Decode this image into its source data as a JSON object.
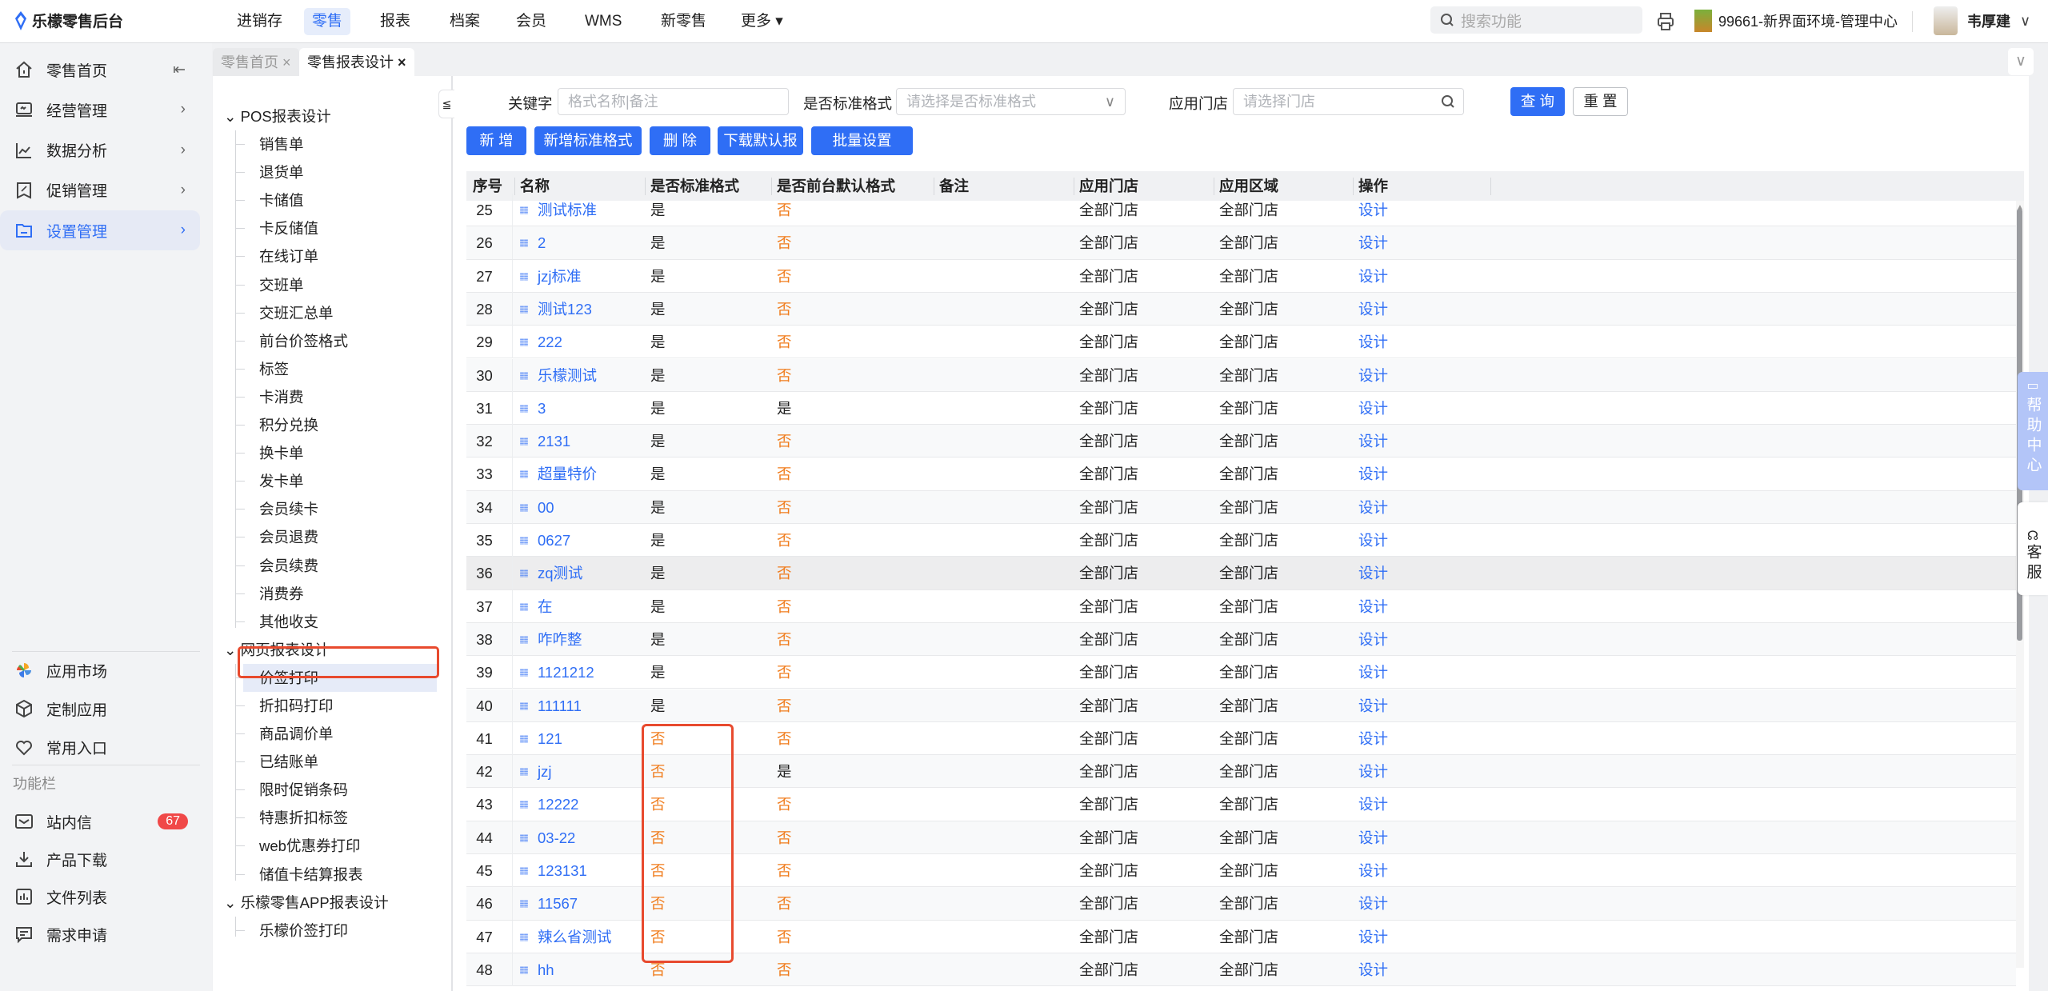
{
  "header": {
    "app_title": "乐檬零售后台",
    "nav": [
      "进销存",
      "零售",
      "报表",
      "档案",
      "会员",
      "WMS",
      "新零售",
      "更多"
    ],
    "active_nav": "零售",
    "search_placeholder": "搜索功能",
    "store": "99661-新界面环境-管理中心",
    "user": "韦厚建"
  },
  "sidebar": {
    "items": [
      {
        "label": "零售首页",
        "icon": "home-icon"
      },
      {
        "label": "经营管理",
        "icon": "monitor-icon"
      },
      {
        "label": "数据分析",
        "icon": "line-chart-icon"
      },
      {
        "label": "促销管理",
        "icon": "discount-icon"
      },
      {
        "label": "设置管理",
        "icon": "folder-icon",
        "active": true
      }
    ],
    "apps": [
      {
        "label": "应用市场",
        "icon": "app-market-icon"
      },
      {
        "label": "定制应用",
        "icon": "cube-icon"
      },
      {
        "label": "常用入口",
        "icon": "heart-icon"
      }
    ],
    "section_title": "功能栏",
    "tools": [
      {
        "label": "站内信",
        "icon": "mail-icon",
        "badge": "67"
      },
      {
        "label": "产品下载",
        "icon": "download-icon"
      },
      {
        "label": "文件列表",
        "icon": "file-list-icon"
      },
      {
        "label": "需求申请",
        "icon": "feedback-icon"
      }
    ]
  },
  "tabs": [
    {
      "label": "零售首页",
      "active": false
    },
    {
      "label": "零售报表设计",
      "active": true
    }
  ],
  "tree": {
    "groups": [
      {
        "label": "POS报表设计",
        "children": [
          "销售单",
          "退货单",
          "卡储值",
          "卡反储值",
          "在线订单",
          "交班单",
          "交班汇总单",
          "前台价签格式",
          "标签",
          "卡消费",
          "积分兑换",
          "换卡单",
          "发卡单",
          "会员续卡",
          "会员退费",
          "会员续费",
          "消费券",
          "其他收支"
        ]
      },
      {
        "label": "网页报表设计",
        "children": [
          "价签打印",
          "折扣码打印",
          "商品调价单",
          "已结账单",
          "限时促销条码",
          "特惠折扣标签",
          "web优惠券打印",
          "储值卡结算报表"
        ]
      },
      {
        "label": "乐檬零售APP报表设计",
        "children": [
          "乐檬价签打印"
        ]
      }
    ],
    "selected": "价签打印"
  },
  "filters": {
    "keyword_label": "关键字",
    "keyword_placeholder": "格式名称|备注",
    "standard_label": "是否标准格式",
    "standard_placeholder": "请选择是否标准格式",
    "store_label": "应用门店",
    "store_placeholder": "请选择门店",
    "query": "查 询",
    "reset": "重 置"
  },
  "toolbar": {
    "add": "新 增",
    "add_standard": "新增标准格式",
    "delete": "删 除",
    "download": "下载默认报表",
    "batch": "批量设置"
  },
  "table": {
    "columns": [
      "序号",
      "名称",
      "是否标准格式",
      "是否前台默认格式",
      "备注",
      "应用门店",
      "应用区域",
      "操作"
    ],
    "rows": [
      [
        "25",
        "测试标准",
        "是",
        "否",
        "",
        "全部门店",
        "全部门店",
        "设计"
      ],
      [
        "26",
        "2",
        "是",
        "否",
        "",
        "全部门店",
        "全部门店",
        "设计"
      ],
      [
        "27",
        "jzj标准",
        "是",
        "否",
        "",
        "全部门店",
        "全部门店",
        "设计"
      ],
      [
        "28",
        "测试123",
        "是",
        "否",
        "",
        "全部门店",
        "全部门店",
        "设计"
      ],
      [
        "29",
        "222",
        "是",
        "否",
        "",
        "全部门店",
        "全部门店",
        "设计"
      ],
      [
        "30",
        "乐檬测试",
        "是",
        "否",
        "",
        "全部门店",
        "全部门店",
        "设计"
      ],
      [
        "31",
        "3",
        "是",
        "是",
        "",
        "全部门店",
        "全部门店",
        "设计"
      ],
      [
        "32",
        "2131",
        "是",
        "否",
        "",
        "全部门店",
        "全部门店",
        "设计"
      ],
      [
        "33",
        "超量特价",
        "是",
        "否",
        "",
        "全部门店",
        "全部门店",
        "设计"
      ],
      [
        "34",
        "00",
        "是",
        "否",
        "",
        "全部门店",
        "全部门店",
        "设计"
      ],
      [
        "35",
        "0627",
        "是",
        "否",
        "",
        "全部门店",
        "全部门店",
        "设计"
      ],
      [
        "36",
        "zq测试",
        "是",
        "否",
        "",
        "全部门店",
        "全部门店",
        "设计"
      ],
      [
        "37",
        "在",
        "是",
        "否",
        "",
        "全部门店",
        "全部门店",
        "设计"
      ],
      [
        "38",
        "咋咋整",
        "是",
        "否",
        "",
        "全部门店",
        "全部门店",
        "设计"
      ],
      [
        "39",
        "1121212",
        "是",
        "否",
        "",
        "全部门店",
        "全部门店",
        "设计"
      ],
      [
        "40",
        "111111",
        "是",
        "否",
        "",
        "全部门店",
        "全部门店",
        "设计"
      ],
      [
        "41",
        "121",
        "否",
        "否",
        "",
        "全部门店",
        "全部门店",
        "设计"
      ],
      [
        "42",
        "jzj",
        "否",
        "是",
        "",
        "全部门店",
        "全部门店",
        "设计"
      ],
      [
        "43",
        "12222",
        "否",
        "否",
        "",
        "全部门店",
        "全部门店",
        "设计"
      ],
      [
        "44",
        "03-22",
        "否",
        "否",
        "",
        "全部门店",
        "全部门店",
        "设计"
      ],
      [
        "45",
        "123131",
        "否",
        "否",
        "",
        "全部门店",
        "全部门店",
        "设计"
      ],
      [
        "46",
        "11567",
        "否",
        "否",
        "",
        "全部门店",
        "全部门店",
        "设计"
      ],
      [
        "47",
        "辣么省测试",
        "否",
        "否",
        "",
        "全部门店",
        "全部门店",
        "设计"
      ],
      [
        "48",
        "hh",
        "否",
        "否",
        "",
        "全部门店",
        "全部门店",
        "设计"
      ]
    ],
    "hover_row": "36"
  },
  "float": {
    "help": "帮助中心",
    "service": "客服"
  },
  "colors": {
    "primary": "#2f6ef5",
    "no": "#f07c1c",
    "highlight": "#e84a2e",
    "help_bg": "#b3c5f8"
  }
}
